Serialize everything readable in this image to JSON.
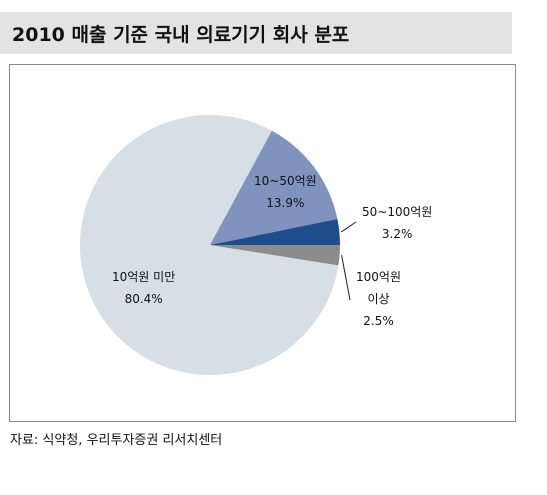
{
  "title": "2010 매출 기준 국내 의료기기 회사 분포",
  "source": "자료: 식약청, 우리투자증권 리서치센터",
  "chart_data": {
    "type": "pie",
    "title": "2010 매출 기준 국내 의료기기 회사 분포",
    "categories": [
      "10억원 미만",
      "10~50억원",
      "50~100억원",
      "100억원 이상"
    ],
    "values": [
      80.4,
      13.9,
      3.2,
      2.5
    ],
    "value_labels": [
      "80.4%",
      "13.9%",
      "3.2%",
      "2.5%"
    ],
    "colors": [
      "#d6dee6",
      "#8093bf",
      "#1f4d8c",
      "#8c8c8c"
    ],
    "label_lines": [
      [
        "10억원 미만",
        "80.4%"
      ],
      [
        "10~50억원",
        "13.9%"
      ],
      [
        "50~100억원",
        "3.2%"
      ],
      [
        "100억원",
        "이상",
        "2.5%"
      ]
    ]
  }
}
